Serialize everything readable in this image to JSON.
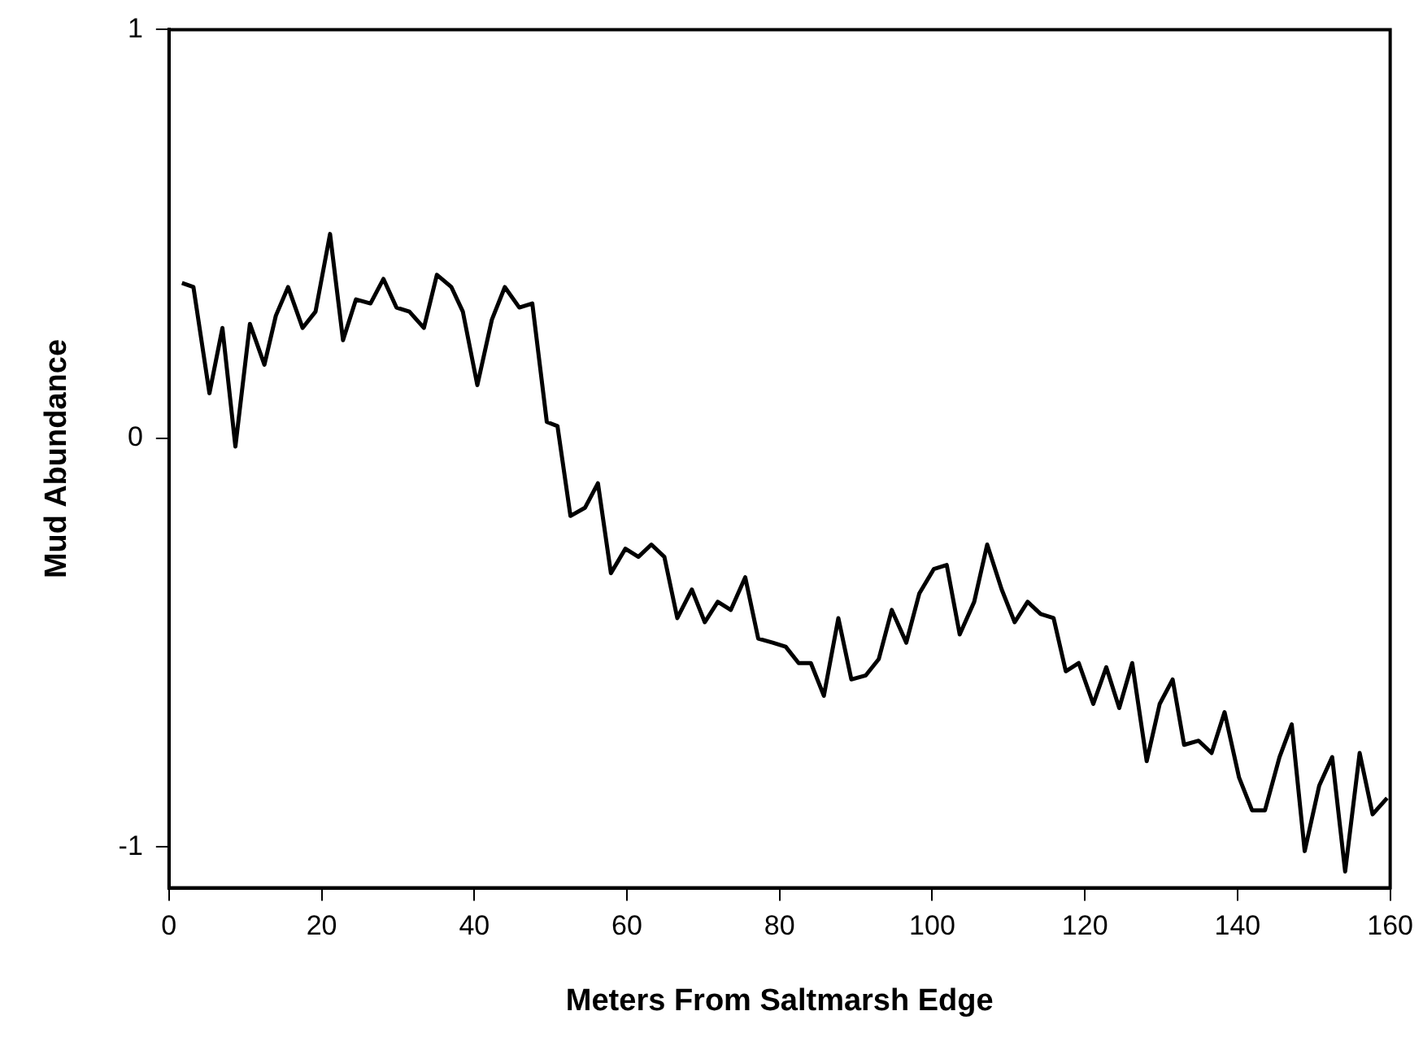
{
  "chart_data": {
    "type": "line",
    "xlabel": "Meters From Saltmarsh Edge",
    "ylabel": "Mud Abundance",
    "xlim": [
      0,
      160
    ],
    "xticks": [
      0,
      20,
      40,
      60,
      80,
      100,
      120,
      140,
      160
    ],
    "ylim": [
      -1.1,
      1
    ],
    "yticks": [
      -1,
      0,
      1
    ],
    "grid": false,
    "legend": false,
    "marker": "none",
    "line_style": "solid",
    "series": [
      {
        "color": "#000000",
        "x": [
          1.7,
          3.2,
          5.3,
          7,
          8.7,
          10.6,
          12.5,
          14,
          15.6,
          17.5,
          19.2,
          21.1,
          22.8,
          24.5,
          26.4,
          28.1,
          29.8,
          31.5,
          33.4,
          35.1,
          37,
          38.5,
          40.4,
          42.3,
          44,
          45.9,
          47.6,
          49.5,
          50.9,
          52.6,
          54.5,
          56.2,
          57.9,
          59.8,
          61.5,
          63.2,
          64.9,
          66.6,
          68.5,
          70.2,
          71.9,
          73.6,
          75.5,
          77.2,
          79.1,
          80.8,
          82.5,
          84.1,
          85.8,
          87.7,
          89.4,
          91.3,
          93,
          94.7,
          96.6,
          98.3,
          100.2,
          101.9,
          103.6,
          105.5,
          107.2,
          109.1,
          110.8,
          112.5,
          114.2,
          115.9,
          117.5,
          119.2,
          121.1,
          122.8,
          124.5,
          126.2,
          128.1,
          129.8,
          131.5,
          133,
          134.9,
          136.6,
          138.3,
          140.2,
          141.9,
          143.6,
          145.5,
          147.1,
          148.8,
          150.7,
          152.4,
          154.1,
          156,
          157.7,
          159.6
        ],
        "values": [
          0.38,
          0.37,
          0.11,
          0.27,
          -0.02,
          0.28,
          0.18,
          0.3,
          0.37,
          0.27,
          0.31,
          0.5,
          0.24,
          0.34,
          0.33,
          0.39,
          0.32,
          0.31,
          0.27,
          0.4,
          0.37,
          0.31,
          0.13,
          0.29,
          0.37,
          0.32,
          0.33,
          0.04,
          0.03,
          -0.19,
          -0.17,
          -0.11,
          -0.33,
          -0.27,
          -0.29,
          -0.26,
          -0.29,
          -0.44,
          -0.37,
          -0.45,
          -0.4,
          -0.42,
          -0.34,
          -0.49,
          -0.5,
          -0.51,
          -0.55,
          -0.55,
          -0.63,
          -0.44,
          -0.59,
          -0.58,
          -0.54,
          -0.42,
          -0.5,
          -0.38,
          -0.32,
          -0.31,
          -0.48,
          -0.4,
          -0.26,
          -0.37,
          -0.45,
          -0.4,
          -0.43,
          -0.44,
          -0.57,
          -0.55,
          -0.65,
          -0.56,
          -0.66,
          -0.55,
          -0.79,
          -0.65,
          -0.59,
          -0.75,
          -0.74,
          -0.77,
          -0.67,
          -0.83,
          -0.91,
          -0.91,
          -0.78,
          -0.7,
          -1.01,
          -0.85,
          -0.78,
          -1.06,
          -0.77,
          -0.92,
          -0.88
        ]
      }
    ]
  }
}
